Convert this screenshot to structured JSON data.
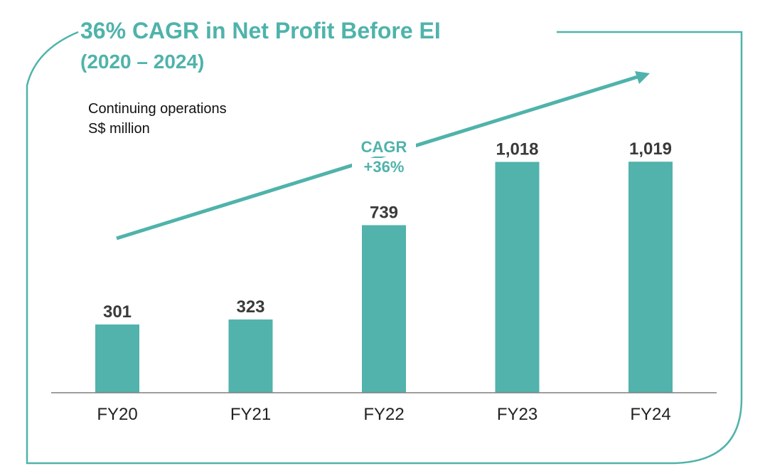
{
  "title": {
    "line1": "36% CAGR in Net Profit Before EI",
    "line2": "(2020 – 2024)"
  },
  "subtitle": {
    "line1": "Continuing operations",
    "line2": "S$ million"
  },
  "annotation": {
    "cagr_label": "CAGR",
    "cagr_value": "+36%"
  },
  "colors": {
    "accent": "#4fb3ab",
    "bar": "#52b2ac",
    "value_text": "#3a3a3a",
    "axis": "#7f7f7f",
    "tick_text": "#222222"
  },
  "chart_data": {
    "type": "bar",
    "categories": [
      "FY20",
      "FY21",
      "FY22",
      "FY23",
      "FY24"
    ],
    "values": [
      301,
      323,
      739,
      1018,
      1019
    ],
    "value_labels": [
      "301",
      "323",
      "739",
      "1,018",
      "1,019"
    ],
    "title": "36% CAGR in Net Profit Before EI",
    "xlabel": "",
    "ylabel": "S$ million",
    "ylim": [
      0,
      1100
    ],
    "grid": false,
    "legend": "none"
  }
}
